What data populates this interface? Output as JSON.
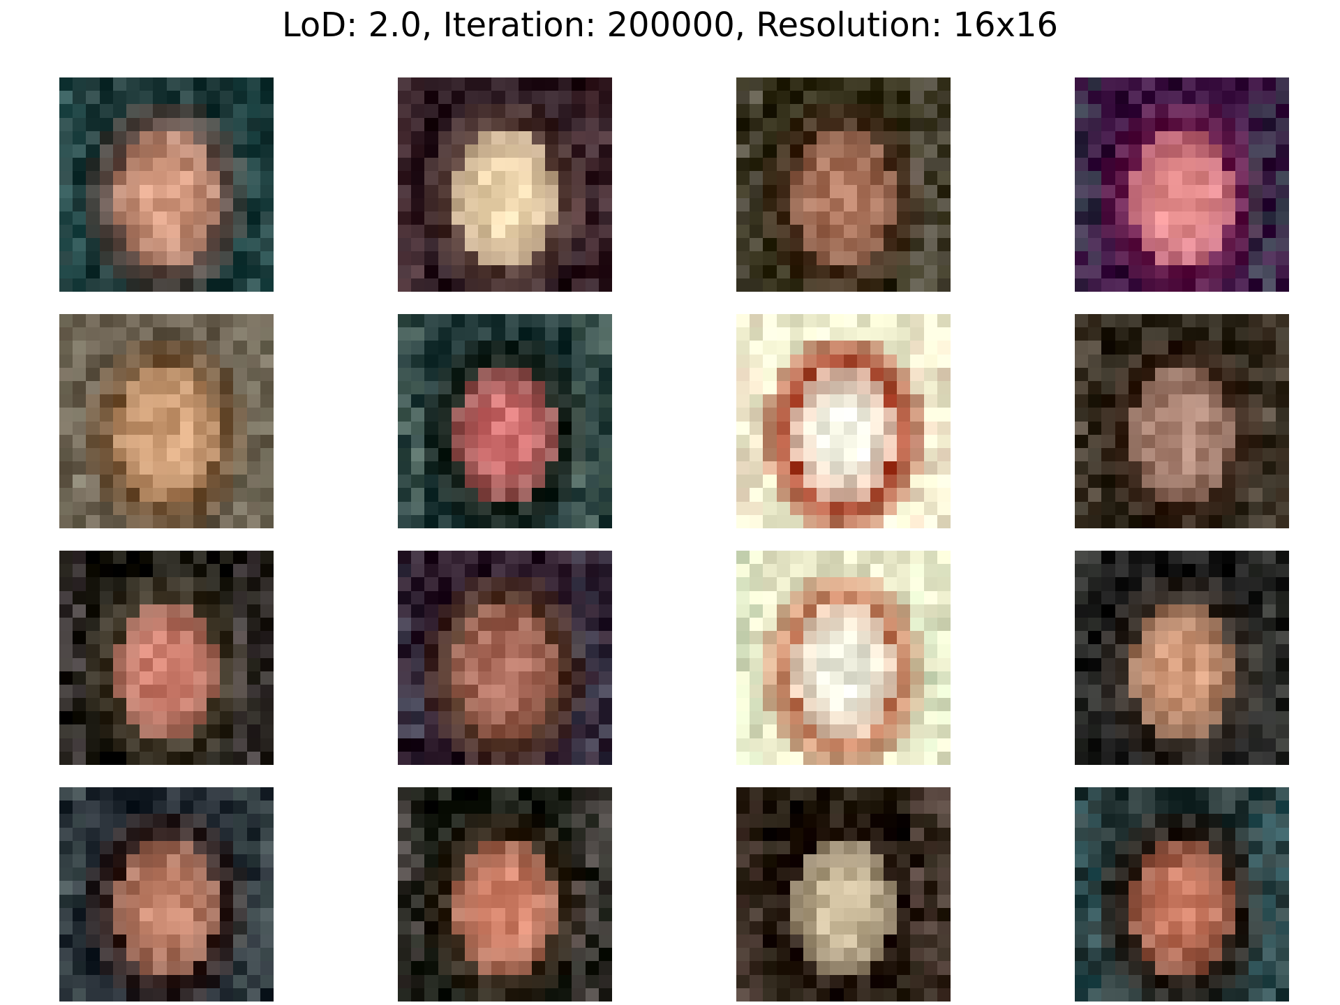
{
  "figure": {
    "title": "LoD: 2.0, Iteration: 200000, Resolution: 16x16"
  },
  "grid": {
    "rows": 4,
    "cols": 4,
    "image_resolution": "16x16"
  },
  "samples": [
    {
      "label": "face-sample",
      "tones": {
        "bg": "#1f3a3a",
        "face": "#d49a80",
        "hair": "#6b5048",
        "accent": "#3e8c8c"
      }
    },
    {
      "label": "face-sample",
      "tones": {
        "bg": "#2a1820",
        "face": "#f0d8b0",
        "hair": "#5a4038",
        "accent": "#a06868"
      }
    },
    {
      "label": "face-sample",
      "tones": {
        "bg": "#2e2a14",
        "face": "#b07860",
        "hair": "#4a3020",
        "accent": "#e8e0f0"
      }
    },
    {
      "label": "face-sample",
      "tones": {
        "bg": "#3a1040",
        "face": "#e89090",
        "hair": "#702050",
        "accent": "#30c878"
      }
    },
    {
      "label": "face-sample",
      "tones": {
        "bg": "#6a6050",
        "face": "#d0a078",
        "hair": "#7a5838",
        "accent": "#a8b098"
      }
    },
    {
      "label": "face-sample",
      "tones": {
        "bg": "#203838",
        "face": "#d07070",
        "hair": "#182018",
        "accent": "#c8e0c0"
      }
    },
    {
      "label": "face-sample",
      "tones": {
        "bg": "#f0f0d0",
        "face": "#f8f8e8",
        "hair": "#a03018",
        "accent": "#f0a8a8"
      }
    },
    {
      "label": "face-sample",
      "tones": {
        "bg": "#2a2418",
        "face": "#b08878",
        "hair": "#3a2418",
        "accent": "#d0b0a0"
      }
    },
    {
      "label": "face-sample",
      "tones": {
        "bg": "#1a1810",
        "face": "#d08070",
        "hair": "#4a4030",
        "accent": "#c8b0d0"
      }
    },
    {
      "label": "face-sample",
      "tones": {
        "bg": "#2a1828",
        "face": "#b07060",
        "hair": "#5a3a28",
        "accent": "#70a8c0"
      }
    },
    {
      "label": "face-sample",
      "tones": {
        "bg": "#e8e8c8",
        "face": "#f0f0e0",
        "hair": "#c07050",
        "accent": "#b0e8c0"
      }
    },
    {
      "label": "face-sample",
      "tones": {
        "bg": "#181818",
        "face": "#d09878",
        "hair": "#3a3028",
        "accent": "#a0a898"
      }
    },
    {
      "label": "face-sample",
      "tones": {
        "bg": "#202830",
        "face": "#c88870",
        "hair": "#3a2420",
        "accent": "#b0d0c0"
      }
    },
    {
      "label": "face-sample",
      "tones": {
        "bg": "#181c14",
        "face": "#d88870",
        "hair": "#3a2a1c",
        "accent": "#e0b8c8"
      }
    },
    {
      "label": "face-sample",
      "tones": {
        "bg": "#20180c",
        "face": "#c8b898",
        "hair": "#2a1c14",
        "accent": "#f0c0c8"
      }
    },
    {
      "label": "face-sample",
      "tones": {
        "bg": "#283838",
        "face": "#c87860",
        "hair": "#2a1c14",
        "accent": "#40b0c8"
      }
    }
  ]
}
